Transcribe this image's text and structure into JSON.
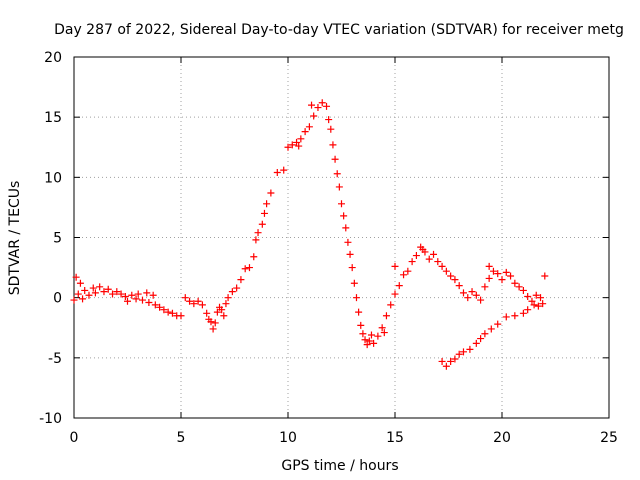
{
  "chart_data": {
    "type": "scatter",
    "title": "Day 287 of 2022, Sidereal Day-to-day VTEC variation (SDTVAR) for receiver metg",
    "xlabel": "GPS time / hours",
    "ylabel": "SDTVAR / TECUs",
    "xlim": [
      0,
      25
    ],
    "ylim": [
      -10,
      20
    ],
    "x_ticks": [
      "0",
      "5",
      "10",
      "15",
      "20",
      "25"
    ],
    "y_ticks": [
      "-10",
      "-5",
      "0",
      "5",
      "10",
      "15",
      "20"
    ],
    "grid": true,
    "marker": "+",
    "color": "#ff0000",
    "series": [
      {
        "name": "SDTVAR",
        "points": [
          [
            0.0,
            -0.2
          ],
          [
            0.1,
            1.7
          ],
          [
            0.2,
            0.3
          ],
          [
            0.3,
            1.2
          ],
          [
            0.4,
            -0.1
          ],
          [
            0.5,
            0.6
          ],
          [
            0.7,
            0.2
          ],
          [
            0.9,
            0.8
          ],
          [
            1.0,
            0.4
          ],
          [
            1.2,
            0.9
          ],
          [
            1.4,
            0.5
          ],
          [
            1.6,
            0.7
          ],
          [
            1.8,
            0.3
          ],
          [
            2.0,
            0.5
          ],
          [
            2.2,
            0.3
          ],
          [
            2.4,
            0.1
          ],
          [
            2.5,
            -0.3
          ],
          [
            2.7,
            0.2
          ],
          [
            2.9,
            -0.1
          ],
          [
            3.0,
            0.3
          ],
          [
            3.2,
            -0.2
          ],
          [
            3.4,
            0.4
          ],
          [
            3.5,
            -0.4
          ],
          [
            3.7,
            0.2
          ],
          [
            3.8,
            -0.6
          ],
          [
            4.0,
            -0.8
          ],
          [
            4.2,
            -1.0
          ],
          [
            4.4,
            -1.2
          ],
          [
            4.6,
            -1.3
          ],
          [
            4.8,
            -1.5
          ],
          [
            5.0,
            -1.5
          ],
          [
            5.2,
            0.0
          ],
          [
            5.4,
            -0.3
          ],
          [
            5.6,
            -0.5
          ],
          [
            5.8,
            -0.3
          ],
          [
            6.0,
            -0.6
          ],
          [
            6.2,
            -1.3
          ],
          [
            6.3,
            -1.8
          ],
          [
            6.4,
            -2.0
          ],
          [
            6.5,
            -2.6
          ],
          [
            6.6,
            -2.1
          ],
          [
            6.7,
            -1.2
          ],
          [
            6.8,
            -0.8
          ],
          [
            6.9,
            -1.0
          ],
          [
            7.0,
            -1.5
          ],
          [
            7.1,
            -0.5
          ],
          [
            7.2,
            0.0
          ],
          [
            7.4,
            0.5
          ],
          [
            7.6,
            0.8
          ],
          [
            7.8,
            1.5
          ],
          [
            8.0,
            2.4
          ],
          [
            8.2,
            2.5
          ],
          [
            8.4,
            3.4
          ],
          [
            8.5,
            4.8
          ],
          [
            8.6,
            5.4
          ],
          [
            8.8,
            6.1
          ],
          [
            8.9,
            7.0
          ],
          [
            9.0,
            7.8
          ],
          [
            9.2,
            8.7
          ],
          [
            9.5,
            10.4
          ],
          [
            9.8,
            10.6
          ],
          [
            10.0,
            12.5
          ],
          [
            10.2,
            12.7
          ],
          [
            10.4,
            12.9
          ],
          [
            10.5,
            12.6
          ],
          [
            10.6,
            13.2
          ],
          [
            10.8,
            13.8
          ],
          [
            11.0,
            14.2
          ],
          [
            11.2,
            15.1
          ],
          [
            11.4,
            15.8
          ],
          [
            11.6,
            16.2
          ],
          [
            11.8,
            15.9
          ],
          [
            11.9,
            14.8
          ],
          [
            12.0,
            14.0
          ],
          [
            12.1,
            12.7
          ],
          [
            12.2,
            11.5
          ],
          [
            12.3,
            10.3
          ],
          [
            12.4,
            9.2
          ],
          [
            12.5,
            7.8
          ],
          [
            12.6,
            6.8
          ],
          [
            12.7,
            5.8
          ],
          [
            12.8,
            4.6
          ],
          [
            12.9,
            3.6
          ],
          [
            13.0,
            2.5
          ],
          [
            13.1,
            1.2
          ],
          [
            13.2,
            0.0
          ],
          [
            13.3,
            -1.2
          ],
          [
            13.4,
            -2.3
          ],
          [
            13.5,
            -3.0
          ],
          [
            13.6,
            -3.5
          ],
          [
            13.7,
            -3.9
          ],
          [
            13.8,
            -3.6
          ],
          [
            13.9,
            -3.1
          ],
          [
            14.0,
            -3.8
          ],
          [
            14.2,
            -3.2
          ],
          [
            14.4,
            -2.5
          ],
          [
            14.5,
            -2.9
          ],
          [
            14.6,
            -1.5
          ],
          [
            14.8,
            -0.6
          ],
          [
            15.0,
            0.3
          ],
          [
            15.2,
            1.0
          ],
          [
            15.4,
            1.9
          ],
          [
            15.6,
            2.2
          ],
          [
            15.8,
            3.0
          ],
          [
            16.0,
            3.5
          ],
          [
            16.2,
            4.2
          ],
          [
            16.4,
            3.8
          ],
          [
            16.6,
            3.2
          ],
          [
            16.8,
            3.6
          ],
          [
            17.0,
            3.0
          ],
          [
            17.2,
            2.6
          ],
          [
            17.4,
            2.2
          ],
          [
            17.6,
            1.8
          ],
          [
            17.8,
            1.5
          ],
          [
            18.0,
            1.0
          ],
          [
            18.2,
            0.4
          ],
          [
            18.4,
            0.0
          ],
          [
            18.6,
            0.5
          ],
          [
            18.8,
            0.2
          ],
          [
            19.0,
            -0.2
          ],
          [
            19.2,
            0.9
          ],
          [
            19.4,
            1.6
          ],
          [
            19.6,
            2.2
          ],
          [
            19.8,
            2.0
          ],
          [
            20.0,
            1.5
          ],
          [
            20.2,
            2.1
          ],
          [
            20.4,
            1.8
          ],
          [
            20.6,
            1.2
          ],
          [
            20.8,
            0.9
          ],
          [
            21.0,
            0.6
          ],
          [
            21.2,
            0.1
          ],
          [
            21.4,
            -0.3
          ],
          [
            21.6,
            0.2
          ],
          [
            21.8,
            0.0
          ],
          [
            22.0,
            1.8
          ],
          [
            21.9,
            -0.5
          ],
          [
            21.7,
            -0.7
          ],
          [
            21.5,
            -0.6
          ],
          [
            21.2,
            -1.0
          ],
          [
            21.0,
            -1.3
          ],
          [
            20.6,
            -1.5
          ],
          [
            20.2,
            -1.6
          ],
          [
            19.8,
            -2.2
          ],
          [
            19.5,
            -2.6
          ],
          [
            19.2,
            -3.0
          ],
          [
            19.0,
            -3.4
          ],
          [
            18.8,
            -3.8
          ],
          [
            18.5,
            -4.3
          ],
          [
            18.2,
            -4.5
          ],
          [
            18.0,
            -4.7
          ],
          [
            17.8,
            -5.1
          ],
          [
            17.6,
            -5.3
          ],
          [
            17.4,
            -5.7
          ],
          [
            17.2,
            -5.3
          ],
          [
            15.0,
            2.6
          ],
          [
            16.3,
            4.0
          ],
          [
            19.4,
            2.6
          ],
          [
            11.1,
            16.0
          ]
        ]
      }
    ]
  }
}
